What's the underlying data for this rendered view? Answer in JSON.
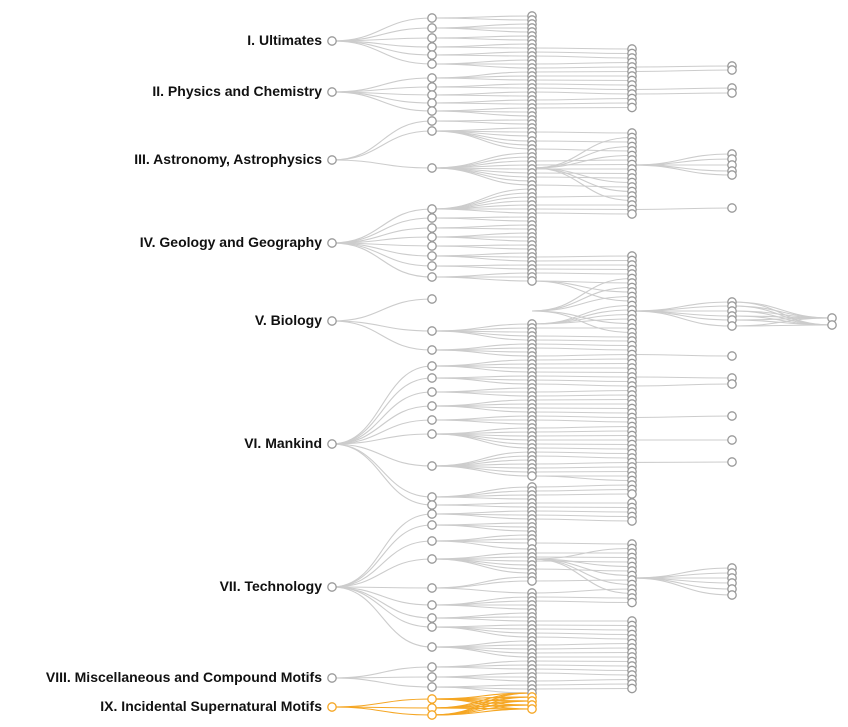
{
  "chart_data": {
    "type": "tree",
    "orientation": "horizontal",
    "colors": {
      "link": "#cccccc",
      "node_stroke": "#999999",
      "highlight": "#f5a623"
    },
    "categories": [
      {
        "label": "I. Ultimates",
        "highlighted": false
      },
      {
        "label": "II. Physics and Chemistry",
        "highlighted": false
      },
      {
        "label": "III. Astronomy, Astrophysics",
        "highlighted": false
      },
      {
        "label": "IV. Geology and Geography",
        "highlighted": false
      },
      {
        "label": "V. Biology",
        "highlighted": false
      },
      {
        "label": "VI. Mankind",
        "highlighted": false
      },
      {
        "label": "VII. Technology",
        "highlighted": false
      },
      {
        "label": "VIII. Miscellaneous and Compound Motifs",
        "highlighted": false
      },
      {
        "label": "IX. Incidental Supernatural Motifs",
        "highlighted": true
      }
    ]
  }
}
